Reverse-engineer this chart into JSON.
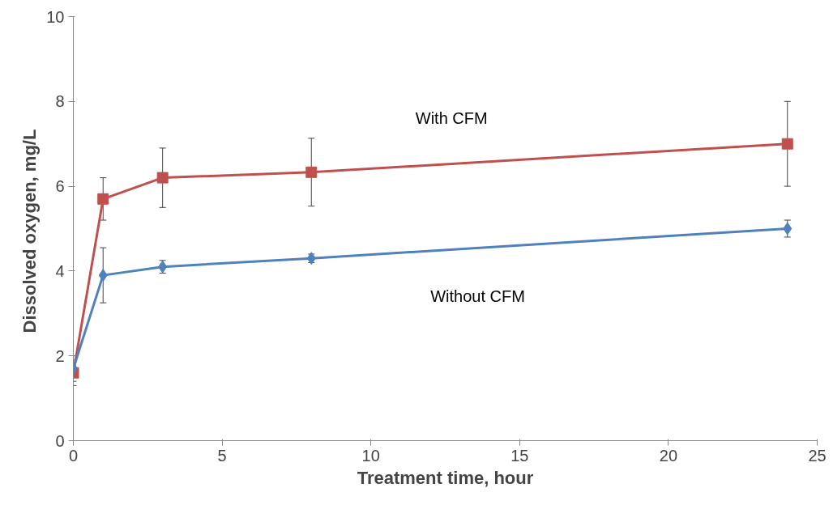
{
  "chart_data": {
    "type": "line",
    "xlabel": "Treatment time, hour",
    "ylabel": "Dissolved oxygen,  mg/L",
    "x": [
      0,
      1,
      3,
      8,
      24
    ],
    "series": [
      {
        "name": "With CFM",
        "color": "#c0504d",
        "marker": "square",
        "values": [
          1.6,
          5.7,
          6.2,
          6.33,
          7.0
        ],
        "errors": [
          0.3,
          0.5,
          0.7,
          0.8,
          1.0
        ]
      },
      {
        "name": "Without CFM",
        "color": "#4f81bd",
        "marker": "diamond",
        "values": [
          1.7,
          3.9,
          4.1,
          4.3,
          5.0
        ],
        "errors": [
          0.3,
          0.65,
          0.15,
          0.1,
          0.2
        ]
      }
    ],
    "xlim": [
      0,
      25
    ],
    "xticks": [
      0,
      5,
      10,
      15,
      20,
      25
    ],
    "ylim": [
      0,
      10
    ],
    "yticks": [
      0,
      2,
      4,
      6,
      8,
      10
    ],
    "grid": false,
    "line_style": "solid"
  }
}
